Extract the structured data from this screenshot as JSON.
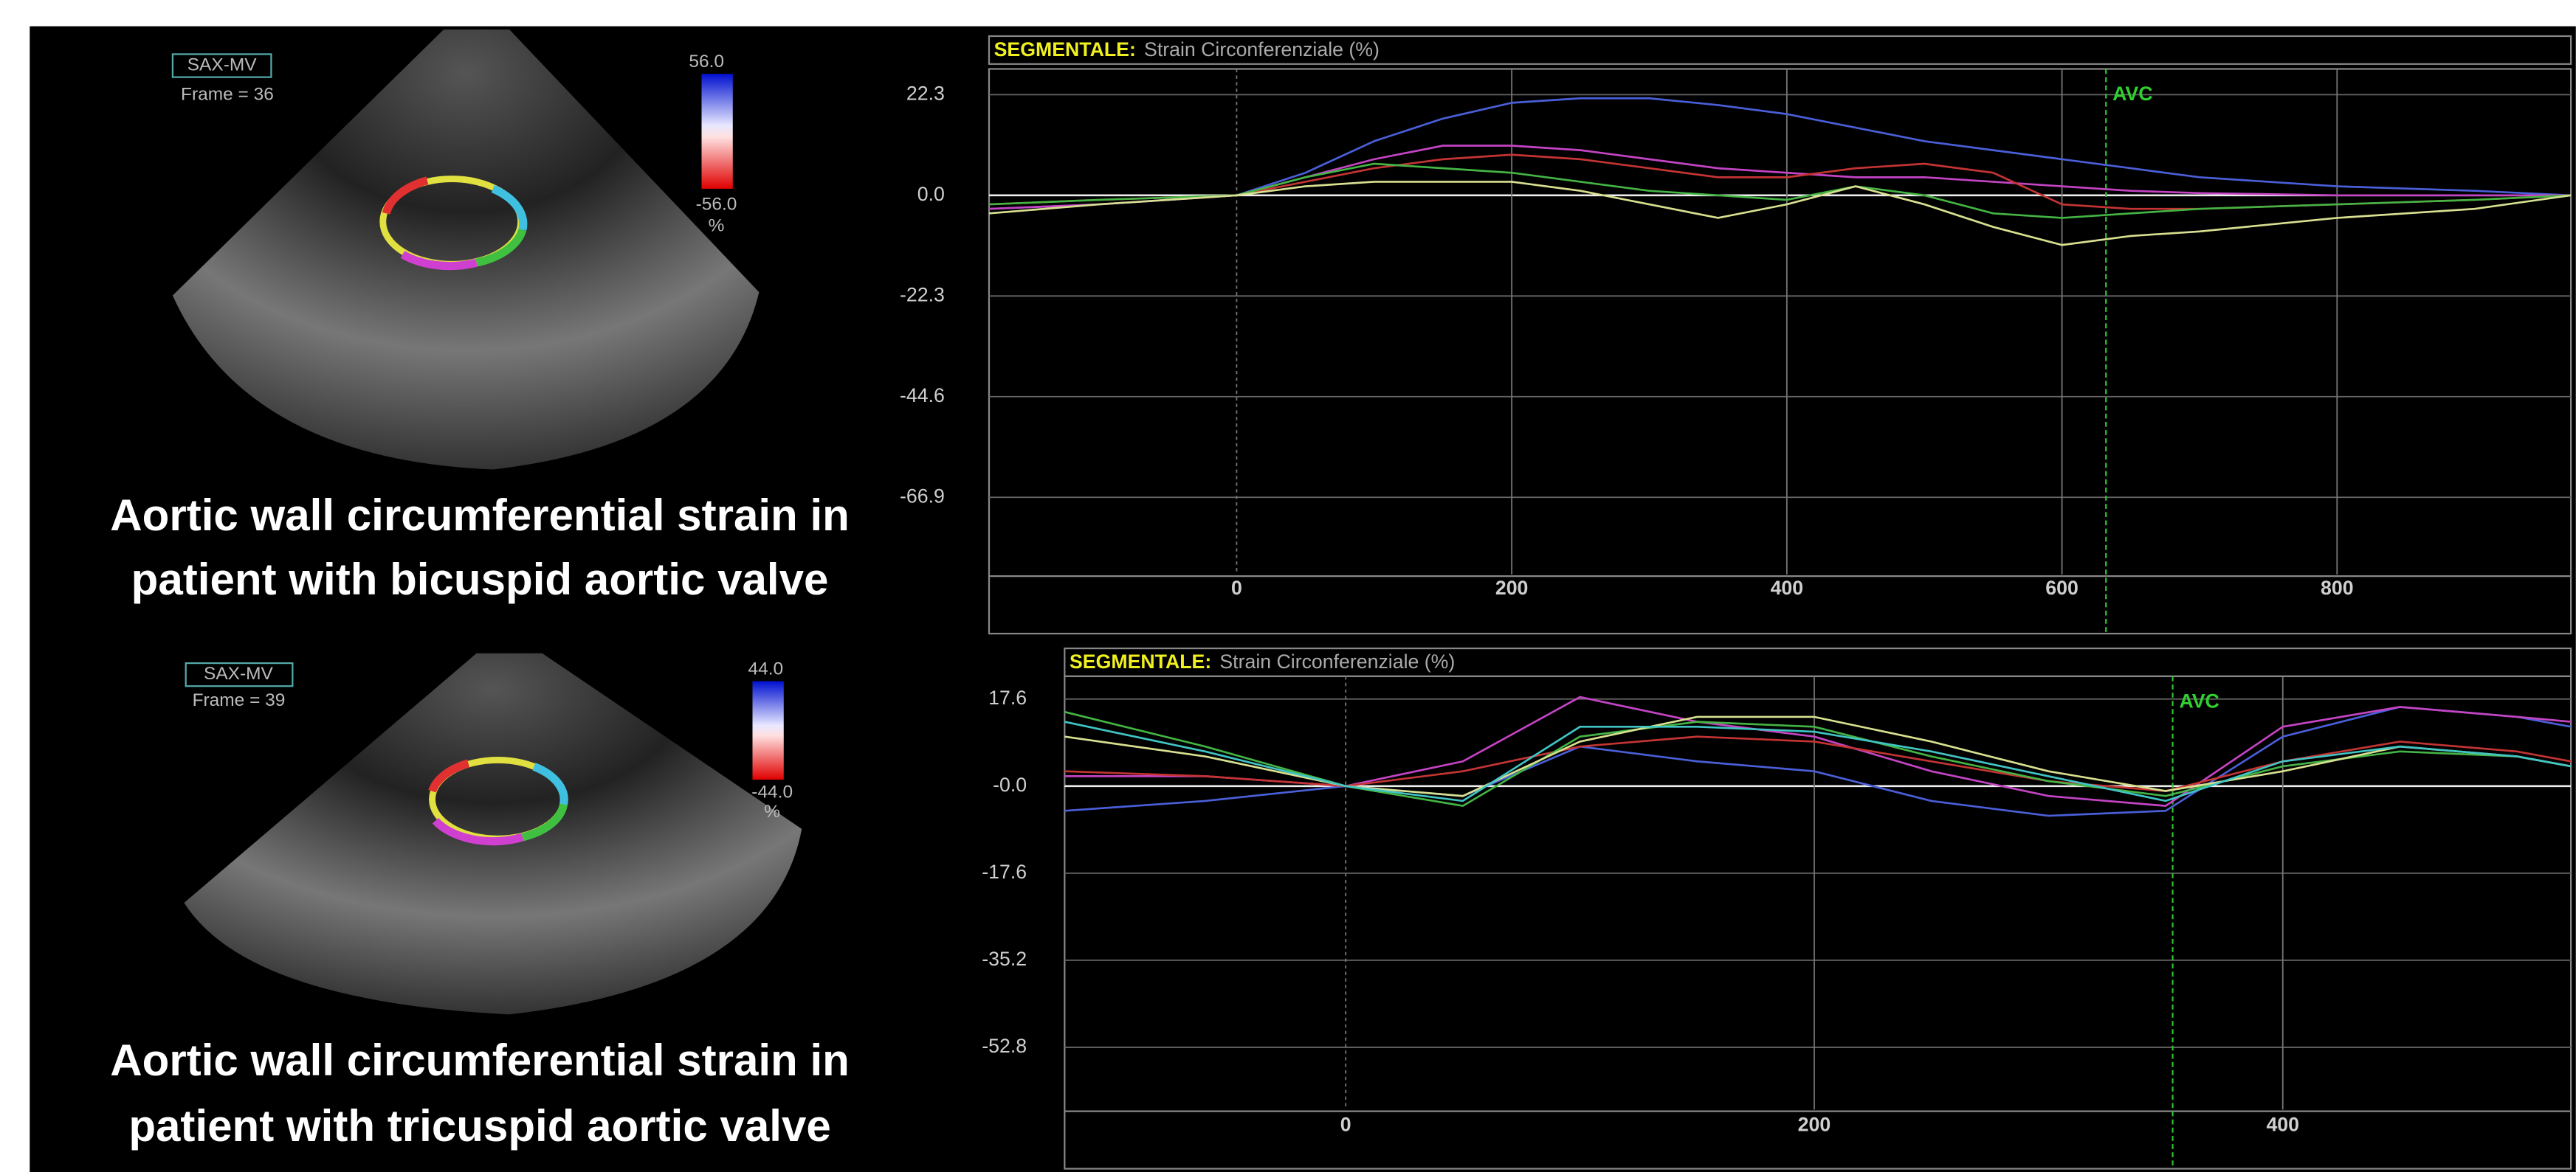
{
  "panels": [
    {
      "tag": "SAX-MV",
      "frame": "Frame = 36",
      "scale_max": "56.0",
      "scale_min": "-56.0",
      "scale_unit": "%",
      "caption": [
        "Aortic wall circumferential strain in",
        "patient with bicuspid aortic valve"
      ]
    },
    {
      "tag": "SAX-MV",
      "frame": "Frame = 39",
      "scale_max": "44.0",
      "scale_min": "-44.0",
      "scale_unit": "%",
      "caption": [
        "Aortic wall circumferential strain in",
        "patient with tricuspid aortic valve"
      ]
    }
  ],
  "chart_data": [
    {
      "type": "line",
      "title": "SEGMENTALE:",
      "subtitle": "Strain Circonferenziale (%)",
      "x": [
        -180,
        -100,
        0,
        50,
        100,
        150,
        200,
        250,
        300,
        350,
        400,
        450,
        500,
        550,
        600,
        650,
        700,
        800,
        900,
        970
      ],
      "series": [
        {
          "color": "#4a5fd8",
          "values": [
            -3,
            -2,
            0,
            5,
            12,
            17,
            20.5,
            21.5,
            21.5,
            20,
            18,
            15,
            12,
            10,
            8,
            6,
            4,
            2,
            1,
            0
          ]
        },
        {
          "color": "#c444c4",
          "values": [
            -3,
            -2,
            0,
            4,
            8,
            11,
            11,
            10,
            8,
            6,
            5,
            4,
            4,
            3,
            2,
            1,
            0.5,
            0,
            0,
            0
          ]
        },
        {
          "color": "#c43434",
          "values": [
            -2,
            -1,
            0,
            3,
            6,
            8,
            9,
            8,
            6,
            4,
            4,
            6,
            7,
            5,
            -2,
            -3,
            -3,
            -2,
            -1,
            0
          ]
        },
        {
          "color": "#44b444",
          "values": [
            -2,
            -1,
            0,
            4,
            7,
            6,
            5,
            3,
            1,
            0,
            -1,
            2,
            0,
            -4,
            -5,
            -4,
            -3,
            -2,
            -1,
            0
          ]
        },
        {
          "color": "#d8e090",
          "values": [
            -4,
            -2,
            0,
            2,
            3,
            3,
            3,
            1,
            -2,
            -5,
            -2,
            2,
            -2,
            -7,
            -11,
            -9,
            -8,
            -5,
            -3,
            0
          ]
        }
      ],
      "xlim": [
        -180,
        970
      ],
      "xticks": [
        0,
        200,
        400,
        600,
        800
      ],
      "ylim": [
        -84,
        28
      ],
      "yticks": [
        22.3,
        {
          "value": 0,
          "label": "0.0"
        },
        -22.3,
        -44.6,
        -66.9
      ],
      "grid": true,
      "annotations": [
        {
          "text": "AVC",
          "x": 632
        }
      ]
    },
    {
      "type": "line",
      "title": "SEGMENTALE:",
      "subtitle": "Strain Circonferenziale (%)",
      "x": [
        -120,
        -60,
        0,
        50,
        100,
        150,
        200,
        250,
        300,
        350,
        400,
        450,
        500,
        523
      ],
      "series": [
        {
          "color": "#4a5fd8",
          "values": [
            -5,
            -3,
            0,
            -2,
            8,
            5,
            3,
            -3,
            -6,
            -5,
            10,
            16,
            14,
            12
          ]
        },
        {
          "color": "#c444c4",
          "values": [
            2,
            2,
            0,
            5,
            18,
            13,
            10,
            3,
            -2,
            -4,
            12,
            16,
            14,
            13
          ]
        },
        {
          "color": "#c43434",
          "values": [
            3,
            2,
            0,
            3,
            8,
            10,
            9,
            5,
            1,
            -1,
            5,
            9,
            7,
            5
          ]
        },
        {
          "color": "#44b444",
          "values": [
            15,
            8,
            0,
            -4,
            10,
            13,
            12,
            6,
            1,
            -2,
            4,
            7,
            6,
            4
          ]
        },
        {
          "color": "#d8e090",
          "values": [
            10,
            6,
            0,
            -2,
            9,
            14,
            14,
            9,
            3,
            -1,
            3,
            8,
            6,
            4
          ]
        },
        {
          "color": "#40c4c4",
          "values": [
            13,
            7,
            0,
            -3,
            12,
            12,
            11,
            7,
            2,
            -3,
            5,
            8,
            6,
            4
          ]
        }
      ],
      "xlim": [
        -120,
        523
      ],
      "xticks": [
        0,
        200,
        400
      ],
      "ylim": [
        -65.4,
        22.2
      ],
      "yticks": [
        17.6,
        {
          "value": 0,
          "label": "-0.0"
        },
        -17.6,
        -35.2,
        -52.8
      ],
      "grid": true,
      "annotations": [
        {
          "text": "AVC",
          "x": 353
        }
      ]
    }
  ]
}
